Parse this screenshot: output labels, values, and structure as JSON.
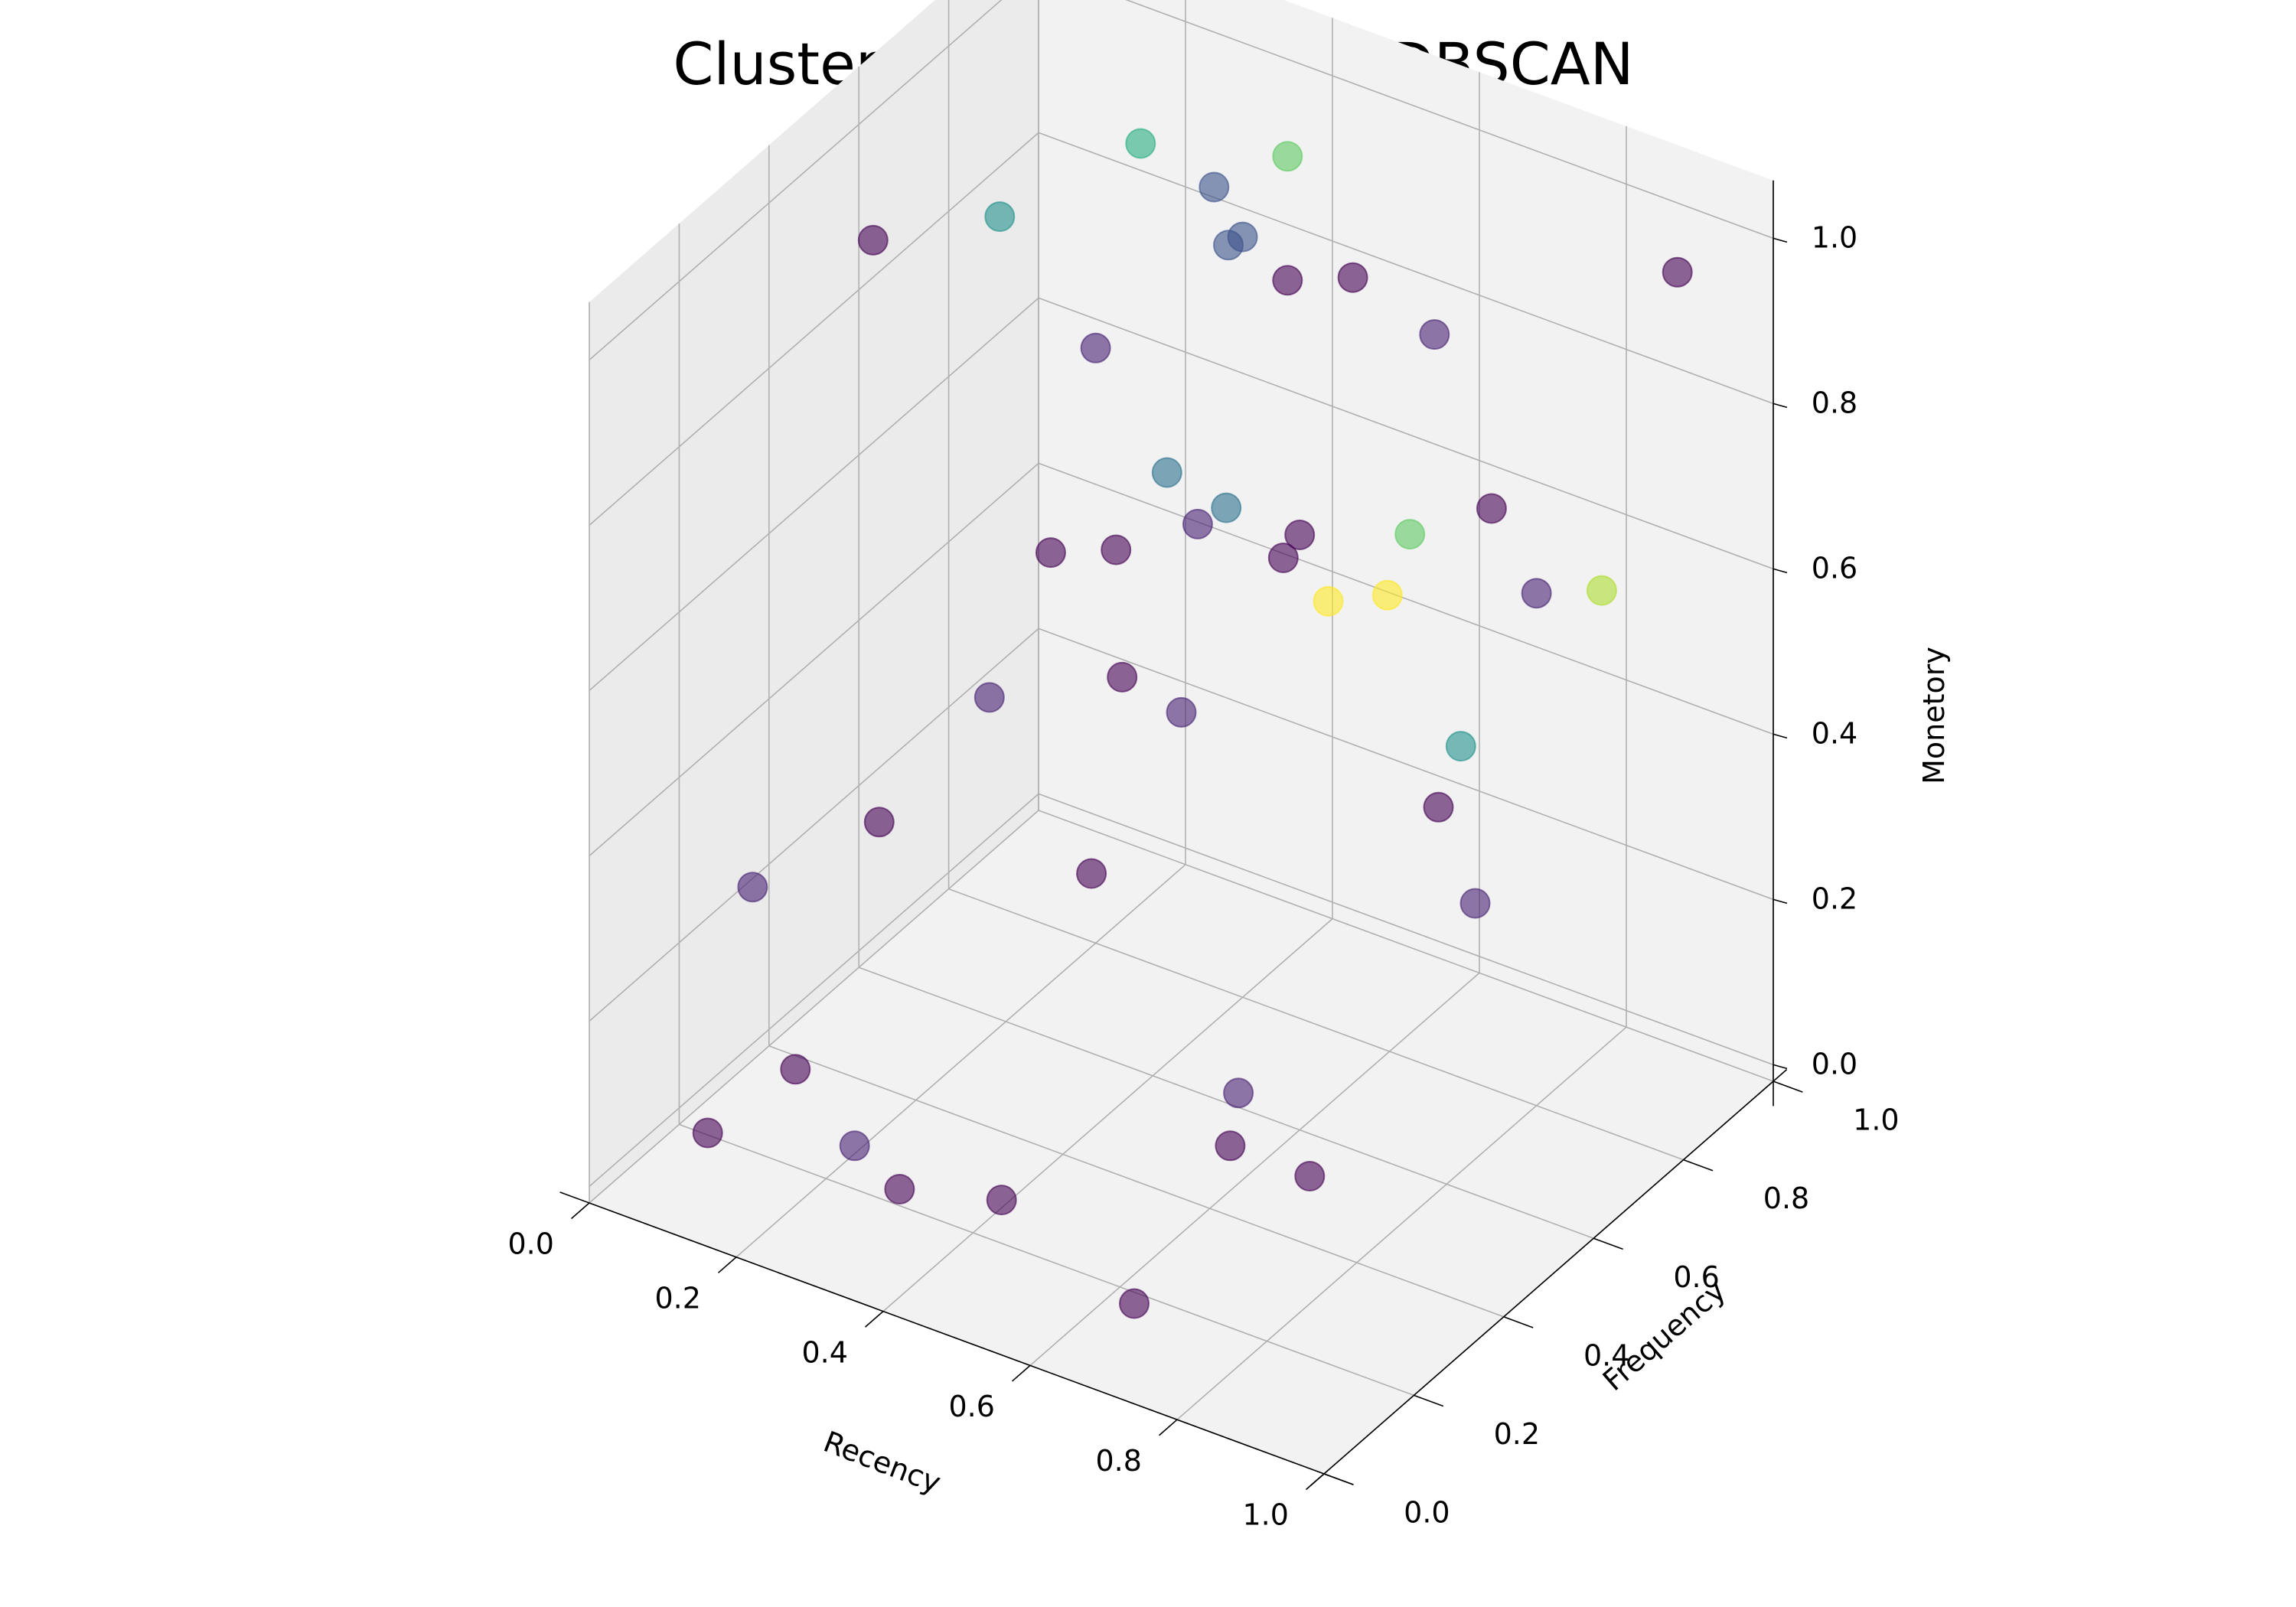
{
  "chart_data": {
    "type": "scatter",
    "projection": "3d",
    "title": "Clusters Obtained using DBSCAN",
    "xlabel": "Recency",
    "ylabel": "Frequency",
    "zlabel": "Monetory",
    "xlim": [
      0,
      1
    ],
    "ylim": [
      0,
      1
    ],
    "zlim": [
      0,
      1
    ],
    "xticks": [
      "0.0",
      "0.2",
      "0.4",
      "0.6",
      "0.8",
      "1.0"
    ],
    "yticks": [
      "0.0",
      "0.2",
      "0.4",
      "0.6",
      "0.8",
      "1.0"
    ],
    "zticks": [
      "0.0",
      "0.2",
      "0.4",
      "0.6",
      "0.8",
      "1.0"
    ],
    "grid": true,
    "colormap": "viridis",
    "marker_opacity": 0.6,
    "clusters": [
      {
        "label": -1,
        "color": "#440154",
        "points": [
          [
            0.05,
            0.55,
            0.9
          ],
          [
            0.95,
            0.05,
            0.3
          ],
          [
            0.1,
            0.1,
            0.05
          ],
          [
            0.3,
            0.2,
            0.0
          ],
          [
            0.5,
            0.1,
            0.1
          ],
          [
            0.9,
            0.95,
            0.95
          ],
          [
            0.7,
            0.4,
            0.8
          ],
          [
            0.4,
            0.9,
            0.8
          ],
          [
            0.6,
            0.6,
            0.7
          ],
          [
            0.8,
            0.7,
            0.75
          ],
          [
            0.2,
            0.7,
            0.5
          ],
          [
            0.5,
            0.3,
            0.4
          ],
          [
            0.75,
            0.2,
            0.2
          ],
          [
            0.35,
            0.6,
            0.6
          ],
          [
            0.85,
            0.5,
            0.5
          ],
          [
            0.15,
            0.4,
            0.3
          ],
          [
            0.55,
            0.8,
            0.9
          ],
          [
            0.65,
            0.15,
            0.0
          ],
          [
            0.25,
            0.05,
            0.2
          ],
          [
            0.45,
            0.45,
            0.55
          ]
        ]
      },
      {
        "label": 0,
        "color": "#482173",
        "points": [
          [
            0.1,
            0.2,
            0.3
          ],
          [
            0.3,
            0.4,
            0.5
          ],
          [
            0.5,
            0.5,
            0.5
          ],
          [
            0.7,
            0.3,
            0.2
          ],
          [
            0.9,
            0.5,
            0.4
          ],
          [
            0.2,
            0.8,
            0.7
          ],
          [
            0.4,
            0.7,
            0.6
          ],
          [
            0.6,
            0.9,
            0.8
          ],
          [
            0.8,
            0.8,
            0.6
          ],
          [
            0.3,
            0.1,
            0.1
          ]
        ]
      },
      {
        "label": 1,
        "color": "#3b528b",
        "points": [
          [
            0.35,
            0.85,
            0.85
          ],
          [
            0.4,
            0.8,
            0.9
          ],
          [
            0.3,
            0.9,
            0.88
          ]
        ]
      },
      {
        "label": 2,
        "color": "#2c728e",
        "points": [
          [
            0.45,
            0.55,
            0.75
          ],
          [
            0.5,
            0.6,
            0.7
          ]
        ]
      },
      {
        "label": 3,
        "color": "#21918c",
        "points": [
          [
            0.1,
            0.75,
            0.85
          ],
          [
            0.85,
            0.55,
            0.55
          ]
        ]
      },
      {
        "label": 4,
        "color": "#28ae80",
        "points": [
          [
            0.2,
            0.9,
            0.9
          ]
        ]
      },
      {
        "label": 5,
        "color": "#5ec962",
        "points": [
          [
            0.4,
            0.9,
            0.95
          ],
          [
            0.75,
            0.6,
            0.75
          ]
        ]
      },
      {
        "label": 6,
        "color": "#addc30",
        "points": [
          [
            0.95,
            0.7,
            0.7
          ]
        ]
      },
      {
        "label": 7,
        "color": "#fde725",
        "points": [
          [
            0.7,
            0.5,
            0.7
          ],
          [
            0.75,
            0.55,
            0.7
          ]
        ]
      }
    ]
  }
}
